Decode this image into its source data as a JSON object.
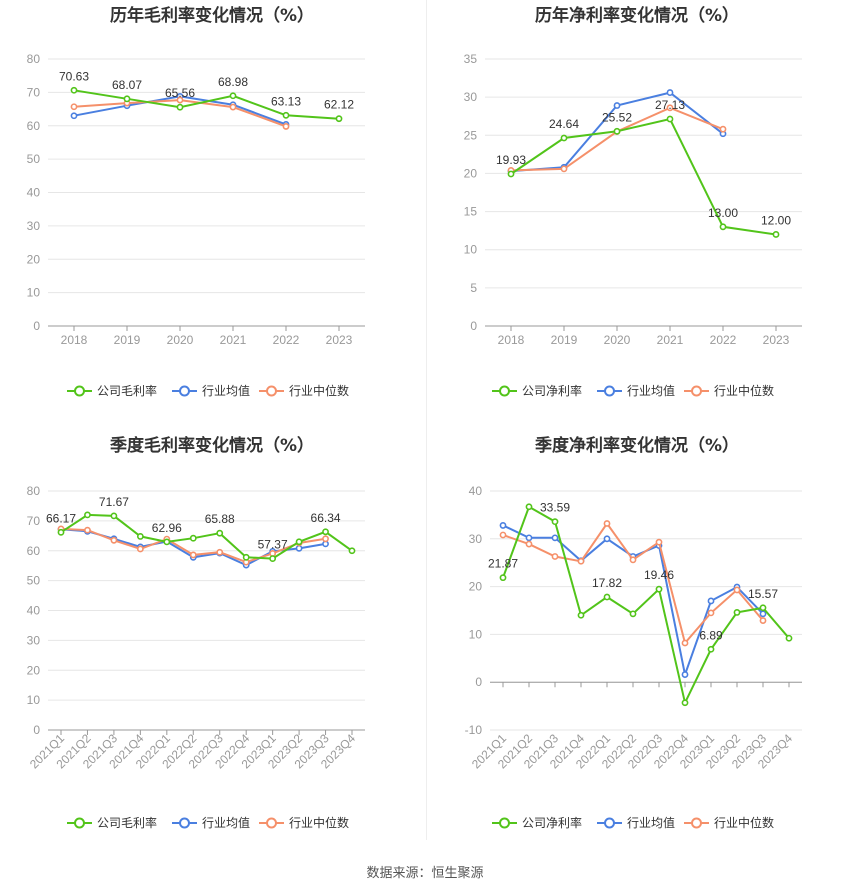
{
  "source_label": "数据来源：恒生聚源",
  "chart_data": [
    {
      "type": "line",
      "title": "历年毛利率变化情况（%）",
      "categories": [
        "2018",
        "2019",
        "2020",
        "2021",
        "2022",
        "2023"
      ],
      "y_ticks": [
        0,
        10,
        20,
        30,
        40,
        50,
        60,
        70,
        80
      ],
      "ylim": [
        0,
        80
      ],
      "rotate_x_labels": false,
      "series": [
        {
          "name": "公司毛利率",
          "color": "#52c41a",
          "values": [
            70.63,
            68.07,
            65.56,
            68.98,
            63.13,
            62.12
          ]
        },
        {
          "name": "行业均值",
          "color": "#4a7fe0",
          "values": [
            63.0,
            66.0,
            68.8,
            66.3,
            60.4,
            null
          ]
        },
        {
          "name": "行业中位数",
          "color": "#f5906a",
          "values": [
            65.7,
            66.8,
            67.7,
            65.6,
            59.8,
            null
          ]
        }
      ],
      "labels": [
        {
          "index": 0,
          "text": "70.63"
        },
        {
          "index": 1,
          "text": "68.07"
        },
        {
          "index": 2,
          "text": "65.56"
        },
        {
          "index": 3,
          "text": "68.98"
        },
        {
          "index": 4,
          "text": "63.13"
        },
        {
          "index": 5,
          "text": "62.12"
        }
      ]
    },
    {
      "type": "line",
      "title": "历年净利率变化情况（%）",
      "categories": [
        "2018",
        "2019",
        "2020",
        "2021",
        "2022",
        "2023"
      ],
      "y_ticks": [
        0,
        5,
        10,
        15,
        20,
        25,
        30,
        35
      ],
      "ylim": [
        0,
        35
      ],
      "rotate_x_labels": false,
      "series": [
        {
          "name": "公司净利率",
          "color": "#52c41a",
          "values": [
            19.93,
            24.64,
            25.52,
            27.13,
            13.0,
            12.0
          ]
        },
        {
          "name": "行业均值",
          "color": "#4a7fe0",
          "values": [
            20.3,
            20.8,
            28.9,
            30.6,
            25.2,
            null
          ]
        },
        {
          "name": "行业中位数",
          "color": "#f5906a",
          "values": [
            20.4,
            20.6,
            25.5,
            28.6,
            25.8,
            null
          ]
        }
      ],
      "labels": [
        {
          "index": 0,
          "text": "19.93"
        },
        {
          "index": 1,
          "text": "24.64"
        },
        {
          "index": 2,
          "text": "25.52"
        },
        {
          "index": 3,
          "text": "27.13"
        },
        {
          "index": 4,
          "text": "13.00"
        },
        {
          "index": 5,
          "text": "12.00"
        }
      ]
    },
    {
      "type": "line",
      "title": "季度毛利率变化情况（%）",
      "categories": [
        "2021Q1",
        "2021Q2",
        "2021Q3",
        "2021Q4",
        "2022Q1",
        "2022Q2",
        "2022Q3",
        "2022Q4",
        "2023Q1",
        "2023Q2",
        "2023Q3",
        "2023Q4"
      ],
      "y_ticks": [
        0,
        10,
        20,
        30,
        40,
        50,
        60,
        70,
        80
      ],
      "ylim": [
        0,
        80
      ],
      "rotate_x_labels": true,
      "series": [
        {
          "name": "公司毛利率",
          "color": "#52c41a",
          "values": [
            66.17,
            72.0,
            71.67,
            64.8,
            62.96,
            64.2,
            65.88,
            57.8,
            57.37,
            63.0,
            66.34,
            60.0
          ]
        },
        {
          "name": "行业均值",
          "color": "#4a7fe0",
          "values": [
            67.2,
            66.5,
            64.0,
            61.3,
            63.1,
            57.8,
            59.2,
            55.2,
            59.8,
            60.8,
            62.3,
            null
          ]
        },
        {
          "name": "行业中位数",
          "color": "#f5906a",
          "values": [
            67.3,
            66.9,
            63.5,
            60.6,
            63.9,
            58.6,
            59.5,
            56.2,
            59.1,
            62.6,
            64.0,
            null
          ]
        }
      ],
      "labels": [
        {
          "index": 0,
          "text": "66.17"
        },
        {
          "index": 2,
          "text": "71.67"
        },
        {
          "index": 4,
          "text": "62.96"
        },
        {
          "index": 6,
          "text": "65.88"
        },
        {
          "index": 8,
          "text": "57.37"
        },
        {
          "index": 10,
          "text": "66.34"
        }
      ]
    },
    {
      "type": "line",
      "title": "季度净利率变化情况（%）",
      "categories": [
        "2021Q1",
        "2021Q2",
        "2021Q3",
        "2021Q4",
        "2022Q1",
        "2022Q2",
        "2022Q3",
        "2022Q4",
        "2023Q1",
        "2023Q2",
        "2023Q3",
        "2023Q4"
      ],
      "y_ticks": [
        -10,
        0,
        10,
        20,
        30,
        40
      ],
      "ylim": [
        -10,
        40
      ],
      "rotate_x_labels": true,
      "series": [
        {
          "name": "公司净利率",
          "color": "#52c41a",
          "values": [
            21.87,
            36.7,
            33.59,
            14.0,
            17.82,
            14.3,
            19.46,
            -4.3,
            6.89,
            14.6,
            15.57,
            9.2
          ]
        },
        {
          "name": "行业均值",
          "color": "#4a7fe0",
          "values": [
            32.8,
            30.2,
            30.2,
            25.4,
            30.0,
            26.3,
            28.6,
            1.6,
            17.0,
            19.9,
            14.3,
            null
          ]
        },
        {
          "name": "行业中位数",
          "color": "#f5906a",
          "values": [
            30.8,
            28.9,
            26.3,
            25.3,
            33.2,
            25.6,
            29.3,
            8.2,
            14.5,
            19.3,
            12.9,
            null
          ]
        }
      ],
      "labels": [
        {
          "index": 0,
          "text": "21.87"
        },
        {
          "index": 2,
          "text": "33.59"
        },
        {
          "index": 4,
          "text": "17.82"
        },
        {
          "index": 6,
          "text": "19.46"
        },
        {
          "index": 8,
          "text": "6.89"
        },
        {
          "index": 10,
          "text": "15.57"
        }
      ]
    }
  ]
}
